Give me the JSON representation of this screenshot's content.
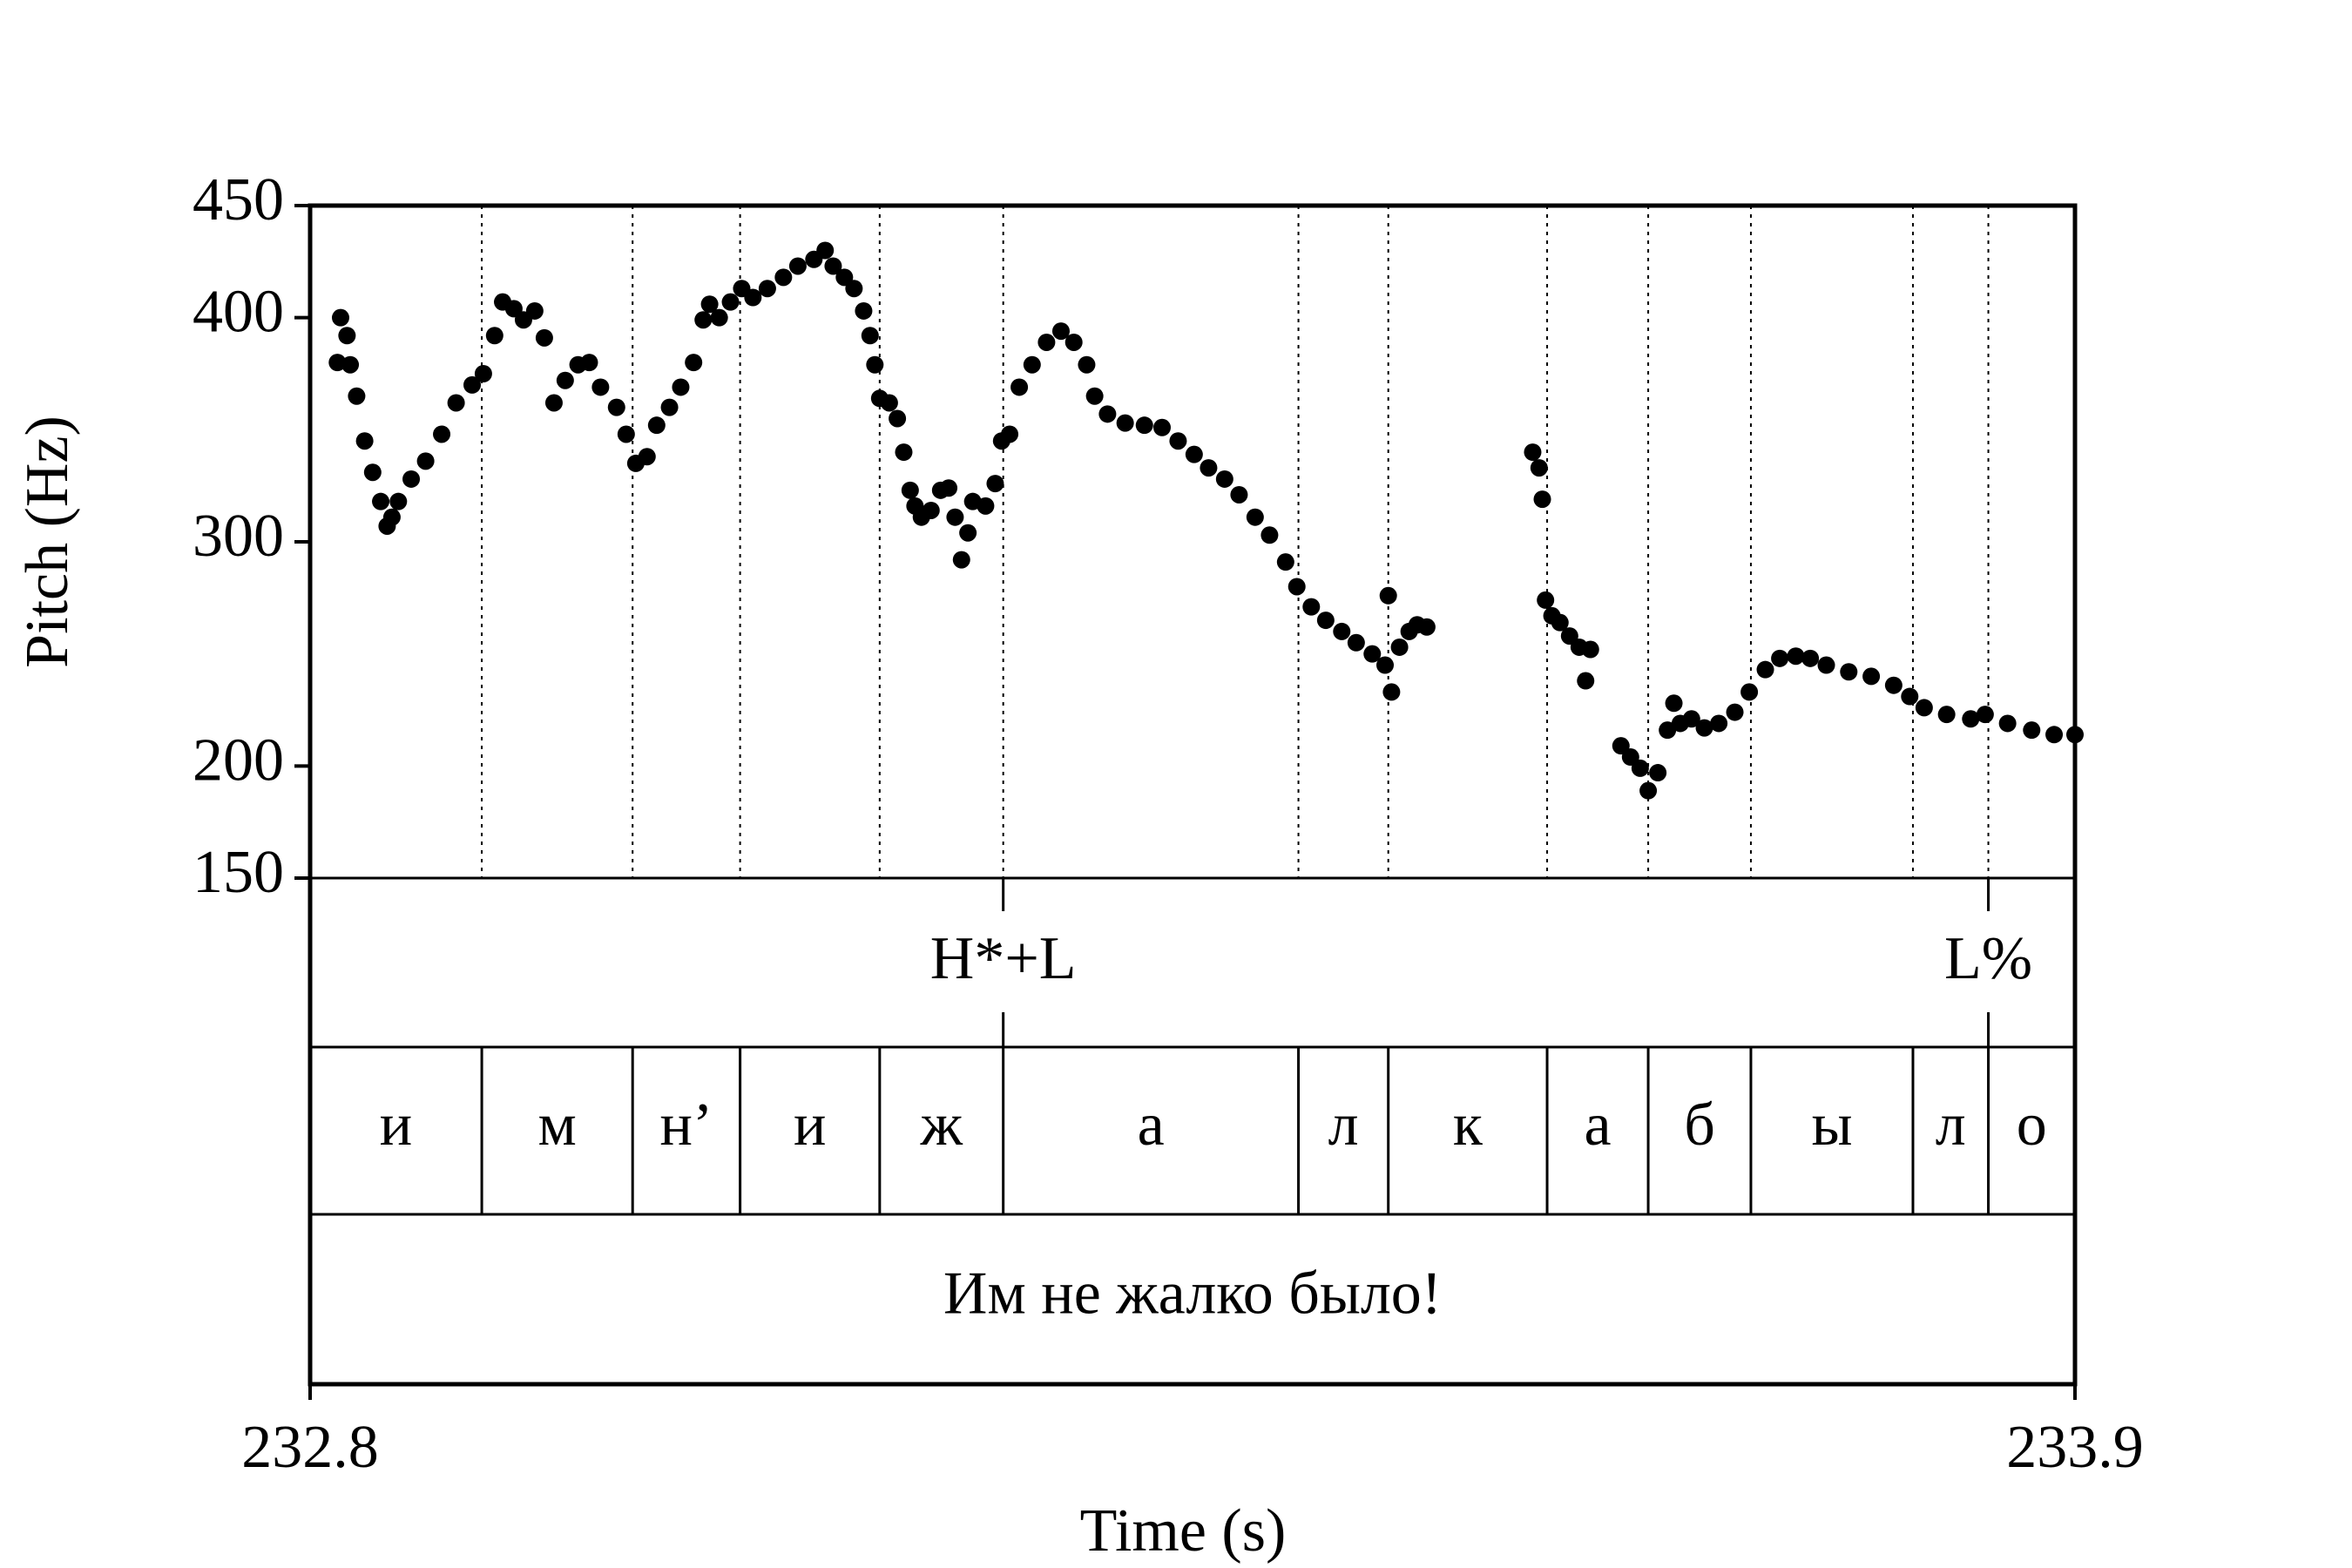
{
  "chart_data": {
    "type": "scatter",
    "x_label": "Time (s)",
    "y_label": "Pitch (Hz)",
    "color": "#000000",
    "xlim": [
      232.8,
      233.9
    ],
    "xticks": [
      232.8,
      233.9
    ],
    "ylim": [
      150,
      450
    ],
    "yticks": [
      150,
      200,
      300,
      400,
      450
    ],
    "x": [
      232.817,
      232.819,
      232.823,
      232.825,
      232.829,
      232.834,
      232.839,
      232.844,
      232.848,
      232.851,
      232.855,
      232.863,
      232.872,
      232.882,
      232.891,
      232.901,
      232.908,
      232.915,
      232.92,
      232.927,
      232.933,
      232.94,
      232.946,
      232.952,
      232.959,
      232.967,
      232.974,
      232.981,
      232.991,
      232.997,
      233.003,
      233.01,
      233.016,
      233.024,
      233.031,
      233.039,
      233.045,
      233.049,
      233.055,
      233.062,
      233.069,
      233.076,
      233.085,
      233.095,
      233.104,
      233.114,
      233.121,
      233.126,
      233.133,
      233.139,
      233.145,
      233.149,
      233.152,
      233.155,
      233.161,
      233.166,
      233.17,
      233.174,
      233.177,
      233.181,
      233.187,
      233.193,
      233.198,
      233.202,
      233.206,
      233.21,
      233.213,
      233.221,
      233.227,
      233.231,
      233.236,
      233.242,
      233.25,
      233.259,
      233.268,
      233.276,
      233.284,
      233.289,
      233.297,
      233.308,
      233.32,
      233.331,
      233.341,
      233.351,
      233.36,
      233.37,
      233.379,
      233.389,
      233.398,
      233.408,
      233.415,
      233.424,
      233.433,
      233.443,
      233.452,
      233.462,
      233.47,
      233.472,
      233.474,
      233.479,
      233.485,
      233.49,
      233.496,
      233.562,
      233.566,
      233.568,
      233.57,
      233.574,
      233.579,
      233.585,
      233.591,
      233.595,
      233.598,
      233.617,
      233.623,
      233.629,
      233.634,
      233.64,
      233.646,
      233.65,
      233.654,
      233.661,
      233.669,
      233.678,
      233.688,
      233.697,
      233.707,
      233.716,
      233.726,
      233.735,
      233.745,
      233.759,
      233.773,
      233.787,
      233.797,
      233.806,
      233.82,
      233.835,
      233.844,
      233.858,
      233.873,
      233.887,
      233.9
    ],
    "y": [
      380,
      400,
      392,
      379,
      365,
      345,
      331,
      318,
      307,
      311,
      318,
      328,
      336,
      348,
      362,
      370,
      375,
      392,
      407,
      404,
      399,
      403,
      391,
      362,
      372,
      379,
      380,
      369,
      360,
      348,
      335,
      338,
      352,
      360,
      369,
      380,
      399,
      406,
      400,
      407,
      413,
      409,
      413,
      418,
      423,
      426,
      430,
      423,
      418,
      413,
      403,
      392,
      379,
      364,
      362,
      355,
      340,
      323,
      316,
      311,
      314,
      323,
      324,
      311,
      292,
      304,
      318,
      316,
      326,
      345,
      348,
      369,
      379,
      389,
      394,
      389,
      379,
      365,
      357,
      353,
      352,
      351,
      345,
      339,
      333,
      328,
      321,
      311,
      303,
      291,
      280,
      271,
      265,
      260,
      255,
      250,
      245,
      276,
      233,
      253,
      260,
      263,
      262,
      340,
      333,
      319,
      274,
      267,
      264,
      258,
      253,
      238,
      252,
      209,
      204,
      199,
      189,
      197,
      216,
      228,
      219,
      221,
      217,
      219,
      224,
      233,
      243,
      248,
      249,
      248,
      245,
      242,
      240,
      236,
      231,
      226,
      223,
      221,
      223,
      219,
      216,
      214,
      214
    ],
    "tones": [
      {
        "time": 233.232,
        "label": "H*+L"
      },
      {
        "time": 233.846,
        "label": "L%"
      }
    ],
    "segment_boundaries": [
      232.907,
      233.001,
      233.068,
      233.155,
      233.232,
      233.416,
      233.472,
      233.571,
      233.634,
      233.698,
      233.799,
      233.846
    ],
    "segments": [
      "и",
      "м",
      "н’",
      "и",
      "ж",
      "а",
      "л",
      "к",
      "а",
      "б",
      "ы",
      "л",
      "о"
    ],
    "sentence": "Им не жалко было!"
  }
}
